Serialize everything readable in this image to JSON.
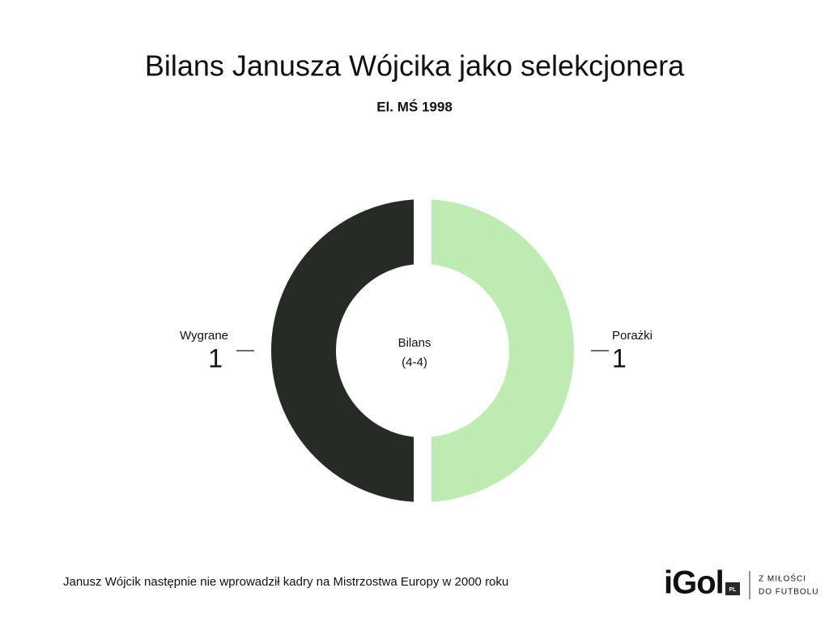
{
  "chart_data": {
    "type": "pie",
    "title": "Bilans Janusza Wójcika jako selekcjonera",
    "subtitle": "El. MŚ 1998",
    "categories": [
      "Wygrane",
      "Porażki"
    ],
    "values": [
      1,
      1
    ],
    "colors": [
      "#272b25",
      "#bdebb1"
    ],
    "center_text": [
      "Bilans",
      "(4-4)"
    ],
    "note": "Janusz Wójcik następnie nie wprowadził kadry na Mistrzostwa Europy w 2000 roku"
  },
  "logo": {
    "name": "iGol",
    "badge": "PL",
    "tagline": [
      "Z MIŁOŚCI",
      "DO FUTBOLU"
    ]
  }
}
